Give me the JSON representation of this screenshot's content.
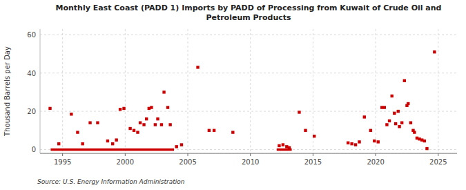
{
  "chart_data": {
    "type": "scatter",
    "title": "Monthly East Coast (PADD 1) Imports by PADD of Processing from Kuwait of Crude Oil and\nPetroleum Products",
    "ylabel": "Thousand Barrels per Day",
    "source": "Source: U.S. Energy Information Administration",
    "xlim": [
      1993.2,
      2026.5
    ],
    "ylim": [
      -2,
      63
    ],
    "xticks": [
      1995,
      2000,
      2005,
      2010,
      2015,
      2020,
      2025
    ],
    "yticks": [
      0,
      20,
      40,
      60
    ],
    "grid": true,
    "series": [
      {
        "type": "scatter",
        "color": "#cc0000",
        "marker": "square",
        "x": [
          1994.0,
          1994.7,
          1995.7,
          1996.2,
          1996.6,
          1997.2,
          1997.8,
          1998.6,
          1999.0,
          1999.3,
          1999.6,
          1999.9,
          2000.4,
          2000.7,
          2001.0,
          2001.2,
          2001.5,
          2001.7,
          2001.9,
          2002.1,
          2002.4,
          2002.6,
          2002.9,
          2003.1,
          2003.4,
          2003.6,
          2004.1,
          2004.5,
          2005.8,
          2006.7,
          2007.1,
          2008.6,
          2012.3,
          2012.6,
          2012.9,
          2013.1,
          2013.9,
          2014.4,
          2015.1,
          2017.8,
          2018.1,
          2018.4,
          2018.7,
          2019.1,
          2019.6,
          2019.9,
          2020.2,
          2020.5,
          2020.7,
          2020.9,
          2021.1,
          2021.3,
          2021.5,
          2021.6,
          2021.8,
          2021.9,
          2022.1,
          2022.3,
          2022.5,
          2022.6,
          2022.8,
          2023.0,
          2023.1,
          2023.3,
          2023.5,
          2023.7,
          2023.9,
          2024.1,
          2024.7
        ],
        "values": [
          21.5,
          3.0,
          18.5,
          9.0,
          3.0,
          14.0,
          14.0,
          4.5,
          3.0,
          5.0,
          21.0,
          21.5,
          11.0,
          10.0,
          9.0,
          14.0,
          13.0,
          16.0,
          21.5,
          22.0,
          13.0,
          16.0,
          13.0,
          30.0,
          22.0,
          13.0,
          1.5,
          2.5,
          43.0,
          10.0,
          10.0,
          9.0,
          2.0,
          2.5,
          1.5,
          1.0,
          19.5,
          10.0,
          7.0,
          3.5,
          3.0,
          2.5,
          4.0,
          17.0,
          10.0,
          4.5,
          4.0,
          22.0,
          22.0,
          13.0,
          15.0,
          28.0,
          19.0,
          13.5,
          20.0,
          12.0,
          14.0,
          36.0,
          23.0,
          24.0,
          14.0,
          10.0,
          9.0,
          6.0,
          5.5,
          5.0,
          4.5,
          0.5,
          51.0
        ]
      },
      {
        "type": "line",
        "color": "#cc0000",
        "x": [
          1994.05,
          2003.9
        ],
        "values": [
          0,
          0
        ]
      },
      {
        "type": "line",
        "color": "#cc0000",
        "x": [
          2012.1,
          2013.3
        ],
        "values": [
          0,
          0
        ]
      }
    ]
  }
}
